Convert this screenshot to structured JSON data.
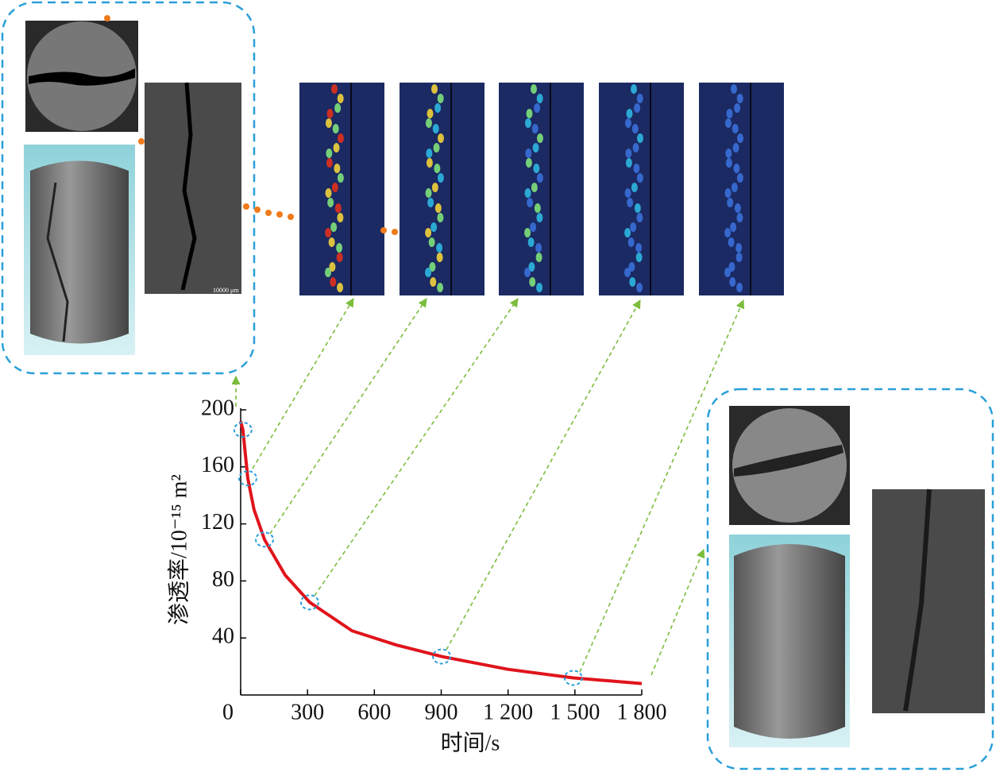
{
  "chart_data": {
    "type": "line",
    "x_label": "时间/s",
    "y_label": "渗透率/10⁻¹⁵ m²",
    "scale_label": "10000 μm",
    "xlim": [
      0,
      1800
    ],
    "xticks": [
      0,
      300,
      600,
      900,
      {
        "value": 1200,
        "label": "1 200"
      },
      {
        "value": 1500,
        "label": "1 500"
      },
      {
        "value": 1800,
        "label": "1 800"
      }
    ],
    "ylim": [
      0,
      200
    ],
    "yticks": [
      40,
      80,
      120,
      160,
      200
    ],
    "series": [
      {
        "color": "#e0141c",
        "x": [
          0,
          10,
          32,
          60,
          107,
          200,
          310,
          500,
          700,
          902,
          1200,
          1493,
          1800
        ],
        "values": [
          192,
          186,
          152,
          130,
          109,
          84,
          65,
          45,
          35,
          27,
          18,
          12,
          8
        ]
      }
    ]
  }
}
